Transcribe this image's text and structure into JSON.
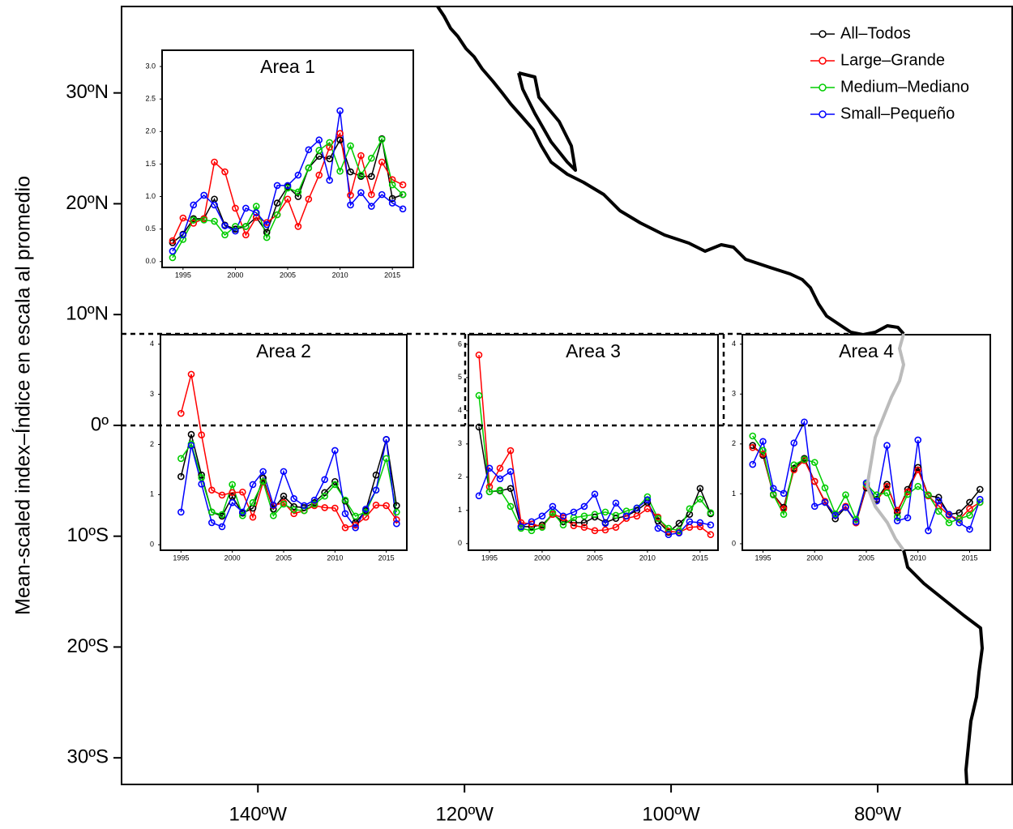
{
  "chart_data": [
    {
      "type": "map",
      "ylabel": "Mean-scaled index–Índice en escala al promedio",
      "xlim": [
        -153.2,
        -66.9
      ],
      "ylim": [
        -32.4,
        37.8
      ],
      "xticks": [
        {
          "value": -140,
          "label": "140ºW"
        },
        {
          "value": -120,
          "label": "120ºW"
        },
        {
          "value": -100,
          "label": "100ºW"
        },
        {
          "value": -80,
          "label": "80ºW"
        }
      ],
      "yticks": [
        {
          "value": 30,
          "label": "30ºN"
        },
        {
          "value": 20,
          "label": "20ºN"
        },
        {
          "value": 10,
          "label": "10ºN"
        },
        {
          "value": 0,
          "label": "0º"
        },
        {
          "value": -10,
          "label": "10ºS"
        },
        {
          "value": -20,
          "label": "20ºS"
        },
        {
          "value": -30,
          "label": "30ºS"
        }
      ],
      "legend": {
        "loc": "top-right",
        "entries": [
          {
            "name": "All–Todos",
            "color": "#000000"
          },
          {
            "name": "Large–Grande",
            "color": "#ff0000"
          },
          {
            "name": "Medium–Mediano",
            "color": "#00cd00"
          },
          {
            "name": "Small–Pequeño",
            "color": "#0000ff"
          }
        ]
      }
    },
    {
      "type": "line",
      "title": "Area 1",
      "x": [
        1994,
        1995,
        1996,
        1997,
        1998,
        1999,
        2000,
        2001,
        2002,
        2003,
        2004,
        2005,
        2006,
        2007,
        2008,
        2009,
        2010,
        2011,
        2012,
        2013,
        2014,
        2015,
        2016
      ],
      "xlim": [
        1993,
        2017
      ],
      "xticks": [
        1995,
        2000,
        2005,
        2010,
        2015
      ],
      "ylim": [
        -0.09,
        3.25
      ],
      "yticks": [
        {
          "value": 0,
          "label": "0.0"
        },
        0.5,
        {
          "value": 1,
          "label": "1.0"
        },
        1.5,
        {
          "value": 2,
          "label": "2.0"
        },
        2.5,
        {
          "value": 3,
          "label": "3.0"
        }
      ],
      "series": [
        {
          "values": [
            0.29,
            0.42,
            0.66,
            0.66,
            0.96,
            0.56,
            0.5,
            0.54,
            0.68,
            0.45,
            0.9,
            1.15,
            1.0,
            1.44,
            1.62,
            1.58,
            1.87,
            1.38,
            1.31,
            1.31,
            1.89,
            0.97,
            1.03
          ]
        },
        {
          "values": [
            0.32,
            0.67,
            0.59,
            0.66,
            1.53,
            1.38,
            0.82,
            0.41,
            0.68,
            0.6,
            0.72,
            0.96,
            0.54,
            0.96,
            1.33,
            1.76,
            1.97,
            1.02,
            1.63,
            1.03,
            1.53,
            1.26,
            1.18
          ]
        },
        {
          "values": [
            0.06,
            0.34,
            0.64,
            0.64,
            0.62,
            0.41,
            0.54,
            0.54,
            0.85,
            0.37,
            0.72,
            1.13,
            1.07,
            1.44,
            1.71,
            1.83,
            1.39,
            1.78,
            1.33,
            1.59,
            1.88,
            1.18,
            1.03
          ]
        },
        {
          "values": [
            0.16,
            0.41,
            0.87,
            1.02,
            0.87,
            0.55,
            0.47,
            0.82,
            0.75,
            0.57,
            1.17,
            1.17,
            1.33,
            1.72,
            1.87,
            1.25,
            2.32,
            0.87,
            1.06,
            0.85,
            1.03,
            0.9,
            0.81
          ]
        }
      ]
    },
    {
      "type": "line",
      "title": "Area 2",
      "x": [
        1995,
        1996,
        1997,
        1998,
        1999,
        2000,
        2001,
        2002,
        2003,
        2004,
        2005,
        2006,
        2007,
        2008,
        2009,
        2010,
        2011,
        2012,
        2013,
        2014,
        2015,
        2016
      ],
      "xlim": [
        1993,
        2017
      ],
      "xticks": [
        1995,
        2000,
        2005,
        2010,
        2015
      ],
      "ylim": [
        -0.11,
        4.19
      ],
      "yticks": [
        0,
        1,
        2,
        3,
        4
      ],
      "series": [
        {
          "values": [
            1.36,
            2.2,
            1.39,
            0.65,
            0.57,
            0.96,
            0.63,
            0.73,
            1.33,
            0.71,
            0.97,
            0.76,
            0.74,
            0.84,
            1.04,
            1.26,
            0.87,
            0.44,
            0.68,
            1.39,
            2.1,
            0.78
          ]
        },
        {
          "values": [
            2.62,
            3.4,
            2.19,
            1.09,
            0.99,
            1.04,
            1.05,
            0.55,
            1.25,
            0.78,
            0.84,
            0.62,
            0.68,
            0.78,
            0.74,
            0.73,
            0.34,
            0.39,
            0.55,
            0.79,
            0.78,
            0.5
          ]
        },
        {
          "values": [
            1.72,
            2.01,
            1.34,
            0.65,
            0.6,
            1.2,
            0.58,
            0.84,
            1.26,
            0.58,
            0.81,
            0.7,
            0.68,
            0.81,
            0.97,
            1.2,
            0.89,
            0.57,
            0.65,
            1.09,
            1.72,
            0.65
          ]
        },
        {
          "values": [
            0.65,
            1.98,
            1.21,
            0.44,
            0.36,
            0.84,
            0.65,
            1.2,
            1.46,
            0.79,
            1.46,
            0.92,
            0.78,
            0.89,
            1.3,
            1.88,
            0.62,
            0.34,
            0.71,
            1.09,
            2.1,
            0.42
          ]
        }
      ]
    },
    {
      "type": "line",
      "title": "Area 3",
      "x": [
        1994,
        1995,
        1996,
        1997,
        1998,
        1999,
        2000,
        2001,
        2002,
        2003,
        2004,
        2005,
        2006,
        2007,
        2008,
        2009,
        2010,
        2011,
        2012,
        2013,
        2014,
        2015,
        2016
      ],
      "xlim": [
        1993,
        2016.7
      ],
      "xticks": [
        1995,
        2000,
        2005,
        2010,
        2015
      ],
      "ylim": [
        -0.2,
        6.29
      ],
      "yticks": [
        0,
        1,
        2,
        3,
        4,
        5,
        6
      ],
      "series": [
        {
          "values": [
            3.51,
            1.56,
            1.59,
            1.66,
            0.51,
            0.51,
            0.56,
            0.88,
            0.66,
            0.63,
            0.63,
            0.8,
            0.63,
            0.76,
            0.83,
            1.0,
            1.24,
            0.68,
            0.34,
            0.61,
            0.88,
            1.66,
            0.9
          ]
        },
        {
          "values": [
            5.68,
            1.71,
            2.27,
            2.8,
            0.63,
            0.59,
            0.51,
            0.88,
            0.78,
            0.54,
            0.49,
            0.39,
            0.41,
            0.49,
            0.76,
            0.83,
            1.05,
            0.8,
            0.37,
            0.34,
            0.49,
            0.51,
            0.27
          ]
        },
        {
          "values": [
            4.46,
            1.56,
            1.61,
            1.12,
            0.46,
            0.39,
            0.49,
            0.93,
            0.56,
            0.78,
            0.83,
            0.88,
            0.95,
            0.85,
            0.98,
            1.07,
            1.41,
            0.76,
            0.46,
            0.39,
            1.05,
            1.34,
            0.93
          ]
        },
        {
          "values": [
            1.44,
            2.27,
            1.95,
            2.17,
            0.51,
            0.66,
            0.83,
            1.12,
            0.83,
            0.95,
            1.12,
            1.49,
            0.61,
            1.22,
            0.83,
            1.07,
            1.32,
            0.46,
            0.27,
            0.32,
            0.66,
            0.63,
            0.56
          ]
        }
      ]
    },
    {
      "type": "line",
      "title": "Area 4",
      "x": [
        1994,
        1995,
        1996,
        1997,
        1998,
        1999,
        2000,
        2001,
        2002,
        2003,
        2004,
        2005,
        2006,
        2007,
        2008,
        2009,
        2010,
        2011,
        2012,
        2013,
        2014,
        2015,
        2016
      ],
      "xlim": [
        1993,
        2017
      ],
      "xticks": [
        1995,
        2000,
        2005,
        2010,
        2015
      ],
      "ylim": [
        -0.13,
        4.19
      ],
      "yticks": [
        0,
        1,
        2,
        3,
        4
      ],
      "series": [
        {
          "values": [
            1.97,
            1.77,
            0.99,
            0.73,
            1.51,
            1.71,
            1.25,
            0.83,
            0.5,
            0.73,
            0.42,
            1.12,
            0.89,
            1.19,
            0.63,
            1.09,
            1.53,
            0.96,
            0.93,
            0.59,
            0.62,
            0.83,
            1.09
          ]
        },
        {
          "values": [
            1.93,
            1.8,
            0.98,
            0.7,
            1.48,
            1.67,
            1.25,
            0.85,
            0.57,
            0.75,
            0.42,
            1.15,
            0.86,
            1.15,
            0.67,
            1.04,
            1.48,
            0.96,
            0.76,
            0.57,
            0.49,
            0.7,
            0.83
          ]
        },
        {
          "values": [
            2.16,
            1.87,
            0.98,
            0.59,
            1.58,
            1.69,
            1.63,
            1.12,
            0.6,
            0.98,
            0.49,
            1.19,
            0.98,
            1.02,
            0.54,
            0.99,
            1.15,
            0.98,
            0.65,
            0.42,
            0.5,
            0.57,
            0.83
          ]
        },
        {
          "values": [
            1.59,
            2.05,
            1.11,
            1.01,
            2.02,
            2.44,
            0.75,
            0.83,
            0.57,
            0.73,
            0.44,
            1.22,
            0.86,
            1.97,
            0.46,
            0.52,
            2.08,
            0.26,
            0.86,
            0.59,
            0.42,
            0.29,
            0.89
          ]
        }
      ]
    }
  ]
}
